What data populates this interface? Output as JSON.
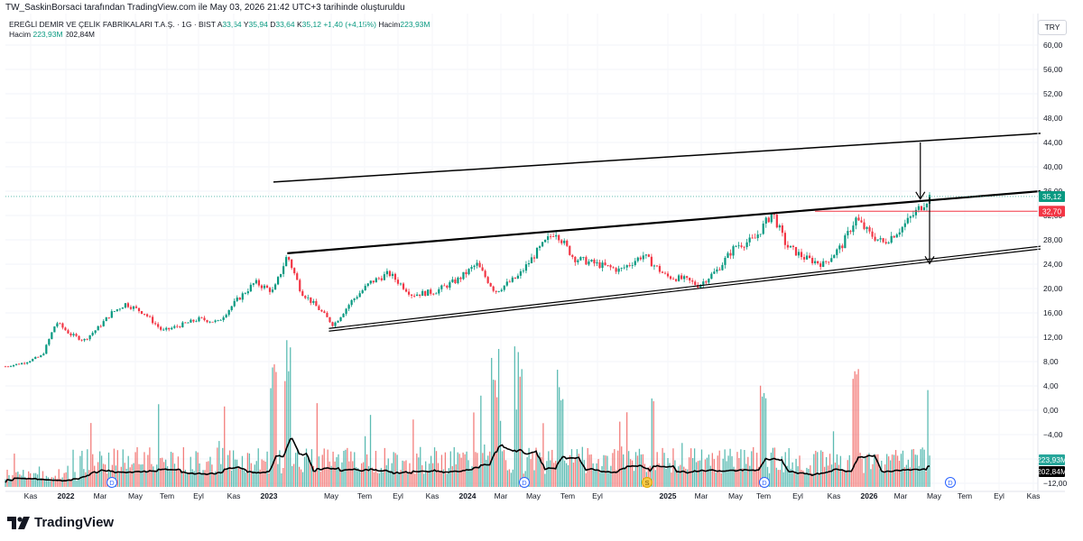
{
  "header": {
    "published_by": "TW_SaskinBorsaci tarafından TradingView.com ile May 03, 2026 21:42 UTC+3 tarihinde oluşturuldu",
    "symbol_name": "EREĞLİ DEMİR VE ÇELİK FABRİKALARI T.A.Ş. · 1G · BIST",
    "ohlc": {
      "open_label": "A",
      "open": "33,64",
      "high_label": "Y",
      "high": "35,94",
      "low_label": "D",
      "low": "33,64",
      "close_label": "K",
      "close": "35,12",
      "change": "+1,40 (+4,15%)",
      "volume_label": "Hacim",
      "volume": "223,93M"
    },
    "volume_row": {
      "label": "Hacim",
      "value": "223,93M",
      "ma": "202,84M"
    },
    "currency": "TRY"
  },
  "colors": {
    "up": "#089981",
    "down": "#f23645",
    "ma": "#000000",
    "horizontal_line": "#f23645",
    "channel": "#000000"
  },
  "price_labels": {
    "last": "35,12",
    "horizontal": "32,70",
    "volume_last": "223,93M",
    "volume_ma": "202,84M"
  },
  "branding": "TradingView",
  "chart_data": {
    "type": "candlestick",
    "interval": "1G",
    "y_ticks": [
      "60,00",
      "56,00",
      "52,00",
      "48,00",
      "44,00",
      "40,00",
      "36,00",
      "32,00",
      "28,00",
      "24,00",
      "20,00",
      "16,00",
      "12,00",
      "8,00",
      "4,00",
      "0,00",
      "−4,00",
      "−8,00",
      "−12,00"
    ],
    "y_tick_values": [
      60,
      56,
      52,
      48,
      44,
      40,
      36,
      32,
      28,
      24,
      20,
      16,
      12,
      8,
      4,
      0,
      -4,
      -8,
      -12
    ],
    "x_ticks": [
      {
        "label": "Kas",
        "bold": false
      },
      {
        "label": "2022",
        "bold": true
      },
      {
        "label": "Mar",
        "bold": false
      },
      {
        "label": "May",
        "bold": false
      },
      {
        "label": "Tem",
        "bold": false
      },
      {
        "label": "Eyl",
        "bold": false
      },
      {
        "label": "Kas",
        "bold": false
      },
      {
        "label": "2023",
        "bold": true
      },
      {
        "label": "May",
        "bold": false
      },
      {
        "label": "Tem",
        "bold": false
      },
      {
        "label": "Eyl",
        "bold": false
      },
      {
        "label": "Kas",
        "bold": false
      },
      {
        "label": "2024",
        "bold": true
      },
      {
        "label": "Mar",
        "bold": false
      },
      {
        "label": "May",
        "bold": false
      },
      {
        "label": "Tem",
        "bold": false
      },
      {
        "label": "Eyl",
        "bold": false
      },
      {
        "label": "2025",
        "bold": true
      },
      {
        "label": "Mar",
        "bold": false
      },
      {
        "label": "May",
        "bold": false
      },
      {
        "label": "Tem",
        "bold": false
      },
      {
        "label": "Eyl",
        "bold": false
      },
      {
        "label": "Kas",
        "bold": false
      },
      {
        "label": "2026",
        "bold": true
      },
      {
        "label": "Mar",
        "bold": false
      },
      {
        "label": "May",
        "bold": false
      },
      {
        "label": "Tem",
        "bold": false
      },
      {
        "label": "Eyl",
        "bold": false
      },
      {
        "label": "Kas",
        "bold": false
      }
    ],
    "event_markers": [
      "D",
      "D",
      "S",
      "D",
      "D"
    ],
    "price_path": [
      {
        "t": 0,
        "p": 7.2
      },
      {
        "t": 0.02,
        "p": 7.8
      },
      {
        "t": 0.04,
        "p": 9
      },
      {
        "t": 0.055,
        "p": 14.5
      },
      {
        "t": 0.07,
        "p": 12.5
      },
      {
        "t": 0.085,
        "p": 11.5
      },
      {
        "t": 0.1,
        "p": 13.5
      },
      {
        "t": 0.115,
        "p": 16
      },
      {
        "t": 0.13,
        "p": 17.5
      },
      {
        "t": 0.15,
        "p": 16
      },
      {
        "t": 0.17,
        "p": 13
      },
      {
        "t": 0.19,
        "p": 14
      },
      {
        "t": 0.21,
        "p": 15
      },
      {
        "t": 0.23,
        "p": 14.5
      },
      {
        "t": 0.25,
        "p": 18
      },
      {
        "t": 0.27,
        "p": 21
      },
      {
        "t": 0.29,
        "p": 19.5
      },
      {
        "t": 0.305,
        "p": 25.5
      },
      {
        "t": 0.32,
        "p": 19.5
      },
      {
        "t": 0.34,
        "p": 16.5
      },
      {
        "t": 0.355,
        "p": 14
      },
      {
        "t": 0.375,
        "p": 18
      },
      {
        "t": 0.395,
        "p": 21
      },
      {
        "t": 0.415,
        "p": 22.5
      },
      {
        "t": 0.44,
        "p": 19
      },
      {
        "t": 0.465,
        "p": 19.5
      },
      {
        "t": 0.49,
        "p": 21.5
      },
      {
        "t": 0.51,
        "p": 24
      },
      {
        "t": 0.53,
        "p": 19.5
      },
      {
        "t": 0.555,
        "p": 22
      },
      {
        "t": 0.575,
        "p": 26
      },
      {
        "t": 0.595,
        "p": 29.5
      },
      {
        "t": 0.615,
        "p": 25
      },
      {
        "t": 0.64,
        "p": 24
      },
      {
        "t": 0.665,
        "p": 23
      },
      {
        "t": 0.69,
        "p": 25.5
      },
      {
        "t": 0.715,
        "p": 22
      },
      {
        "t": 0.735,
        "p": 21.5
      },
      {
        "t": 0.75,
        "p": 20.5
      },
      {
        "t": 0.77,
        "p": 23
      },
      {
        "t": 0.79,
        "p": 27
      },
      {
        "t": 0.81,
        "p": 28
      },
      {
        "t": 0.83,
        "p": 32.5
      },
      {
        "t": 0.845,
        "p": 27
      },
      {
        "t": 0.865,
        "p": 25
      },
      {
        "t": 0.885,
        "p": 24
      },
      {
        "t": 0.905,
        "p": 27
      },
      {
        "t": 0.92,
        "p": 31.5
      },
      {
        "t": 0.935,
        "p": 29
      },
      {
        "t": 0.95,
        "p": 27.5
      },
      {
        "t": 0.97,
        "p": 30
      },
      {
        "t": 1,
        "p": 35.1
      }
    ],
    "annotations": {
      "upper_channel": [
        {
          "t": 0.29,
          "p": 37.5
        },
        {
          "t": 1.12,
          "p": 45.5
        }
      ],
      "middle_channel": [
        {
          "t": 0.305,
          "p": 25.8
        },
        {
          "t": 1.12,
          "p": 36.0
        }
      ],
      "lower_channel": [
        {
          "t": 0.35,
          "p": 13.0
        },
        {
          "t": 1.12,
          "p": 26.5
        }
      ],
      "horizontal_level": 32.7,
      "arrow_down_1": [
        {
          "t": 0.99,
          "p": 44
        },
        {
          "t": 0.99,
          "p": 34.7
        }
      ],
      "arrow_down_2": [
        {
          "t": 1.0,
          "p": 35
        },
        {
          "t": 1.0,
          "p": 24.1
        }
      ]
    }
  }
}
